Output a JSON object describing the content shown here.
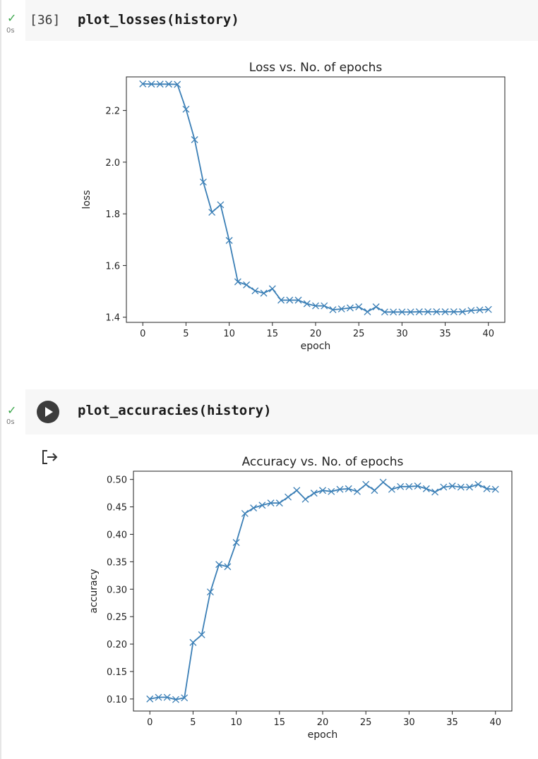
{
  "cells": [
    {
      "exec_count": "[36]",
      "code": "plot_losses(history)",
      "status_duration": "0s"
    },
    {
      "exec_count": "",
      "code": "plot_accuracies(history)",
      "status_duration": "0s"
    }
  ],
  "icons": {
    "status": "check-icon",
    "run": "play-icon",
    "output": "output-arrow-icon"
  },
  "colors": {
    "series": "#3b7fb6",
    "check": "#3aa64a",
    "cell_bg": "#f7f7f7"
  },
  "chart_data": [
    {
      "type": "line",
      "title": "Loss vs. No. of epochs",
      "xlabel": "epoch",
      "ylabel": "loss",
      "marker": "x",
      "xlim": [
        -1.9,
        41.9
      ],
      "ylim": [
        1.38,
        2.33
      ],
      "xticks": [
        0,
        5,
        10,
        15,
        20,
        25,
        30,
        35,
        40
      ],
      "xtick_labels": [
        "0",
        "5",
        "10",
        "15",
        "20",
        "25",
        "30",
        "35",
        "40"
      ],
      "yticks": [
        1.4,
        1.6,
        1.8,
        2.0,
        2.2
      ],
      "ytick_labels": [
        "1.4",
        "1.6",
        "1.8",
        "2.0",
        "2.2"
      ],
      "x": [
        0,
        1,
        2,
        3,
        4,
        5,
        6,
        7,
        8,
        9,
        10,
        11,
        12,
        13,
        14,
        15,
        16,
        17,
        18,
        19,
        20,
        21,
        22,
        23,
        24,
        25,
        26,
        27,
        28,
        29,
        30,
        31,
        32,
        33,
        34,
        35,
        36,
        37,
        38,
        39,
        40
      ],
      "values": [
        2.303,
        2.302,
        2.302,
        2.302,
        2.301,
        2.205,
        2.087,
        1.923,
        1.806,
        1.835,
        1.697,
        1.537,
        1.525,
        1.502,
        1.493,
        1.51,
        1.466,
        1.466,
        1.466,
        1.452,
        1.444,
        1.444,
        1.429,
        1.432,
        1.436,
        1.44,
        1.421,
        1.44,
        1.42,
        1.42,
        1.42,
        1.42,
        1.421,
        1.421,
        1.421,
        1.421,
        1.421,
        1.421,
        1.426,
        1.428,
        1.43
      ]
    },
    {
      "type": "line",
      "title": "Accuracy vs. No. of epochs",
      "xlabel": "epoch",
      "ylabel": "accuracy",
      "marker": "x",
      "xlim": [
        -1.9,
        41.9
      ],
      "ylim": [
        0.078,
        0.515
      ],
      "xticks": [
        0,
        5,
        10,
        15,
        20,
        25,
        30,
        35,
        40
      ],
      "xtick_labels": [
        "0",
        "5",
        "10",
        "15",
        "20",
        "25",
        "30",
        "35",
        "40"
      ],
      "yticks": [
        0.1,
        0.15,
        0.2,
        0.25,
        0.3,
        0.35,
        0.4,
        0.45,
        0.5
      ],
      "ytick_labels": [
        "0.10",
        "0.15",
        "0.20",
        "0.25",
        "0.30",
        "0.35",
        "0.40",
        "0.45",
        "0.50"
      ],
      "x": [
        0,
        1,
        2,
        3,
        4,
        5,
        6,
        7,
        8,
        9,
        10,
        11,
        12,
        13,
        14,
        15,
        16,
        17,
        18,
        19,
        20,
        21,
        22,
        23,
        24,
        25,
        26,
        27,
        28,
        29,
        30,
        31,
        32,
        33,
        34,
        35,
        36,
        37,
        38,
        39,
        40
      ],
      "values": [
        0.1,
        0.103,
        0.103,
        0.099,
        0.102,
        0.203,
        0.217,
        0.295,
        0.345,
        0.341,
        0.385,
        0.438,
        0.448,
        0.453,
        0.457,
        0.457,
        0.468,
        0.48,
        0.464,
        0.475,
        0.48,
        0.478,
        0.482,
        0.483,
        0.478,
        0.491,
        0.48,
        0.495,
        0.482,
        0.487,
        0.487,
        0.488,
        0.483,
        0.477,
        0.486,
        0.488,
        0.486,
        0.486,
        0.491,
        0.483,
        0.482
      ]
    }
  ]
}
